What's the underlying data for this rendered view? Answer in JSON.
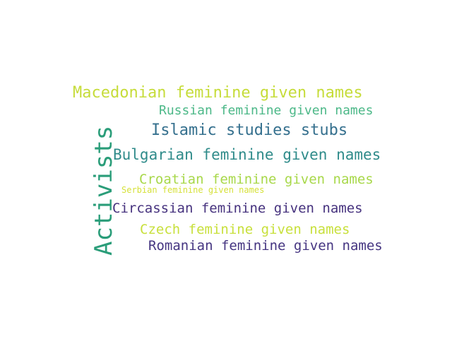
{
  "word_cloud": {
    "words": [
      {
        "text": "Activists",
        "color": "#2a9d79"
      },
      {
        "text": "Macedonian feminine given names",
        "color": "#c6dc3a"
      },
      {
        "text": "Russian feminine given names",
        "color": "#4cb888"
      },
      {
        "text": "Islamic studies stubs",
        "color": "#35708e"
      },
      {
        "text": "Bulgarian feminine given names",
        "color": "#2f8b8a"
      },
      {
        "text": "Croatian feminine given names",
        "color": "#a8d84a"
      },
      {
        "text": "Serbian feminine given names",
        "color": "#d6e13a"
      },
      {
        "text": "Circassian feminine given names",
        "color": "#46327e"
      },
      {
        "text": "Czech feminine given names",
        "color": "#c8e03c"
      },
      {
        "text": "Romanian feminine given names",
        "color": "#453581"
      }
    ]
  }
}
